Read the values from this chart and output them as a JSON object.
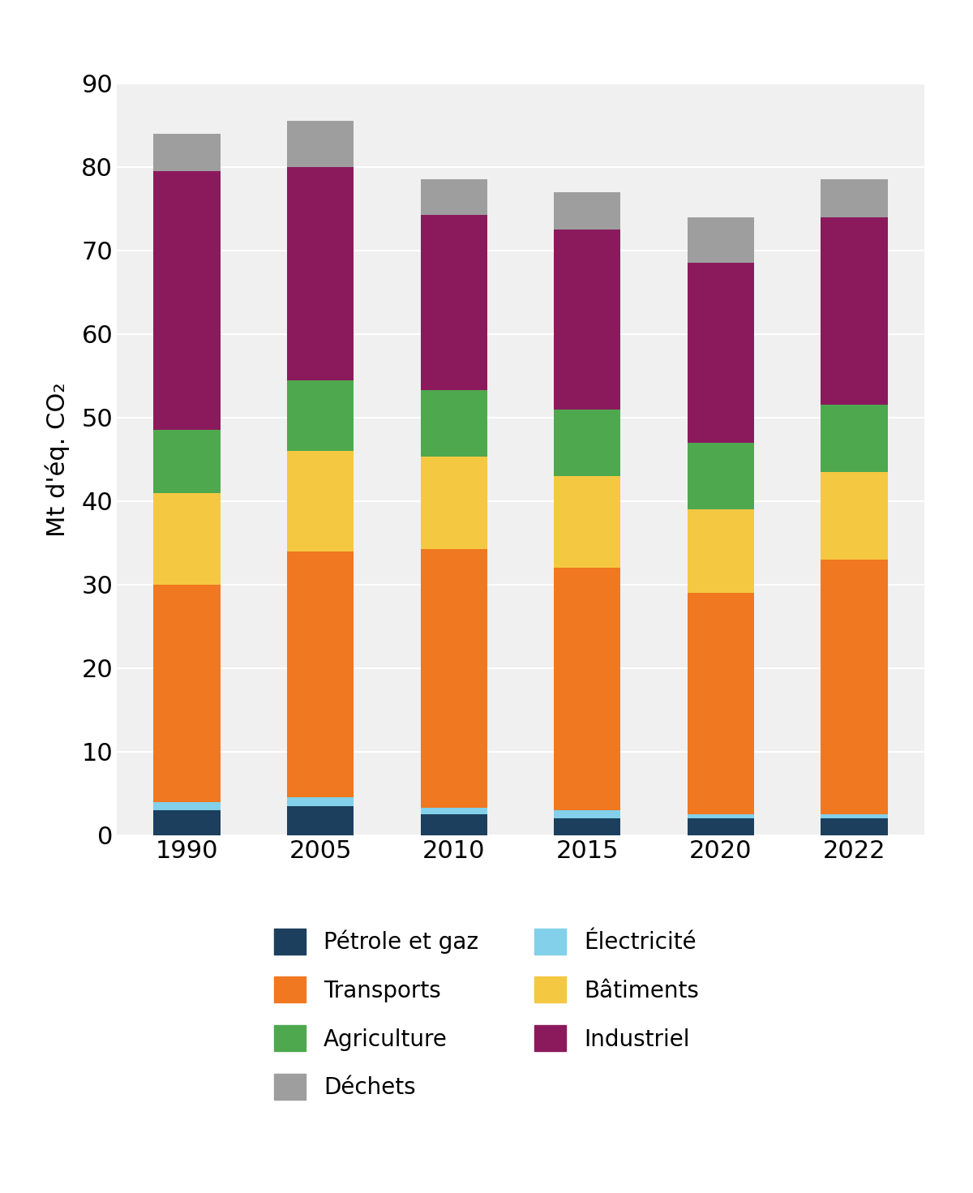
{
  "years": [
    "1990",
    "2005",
    "2010",
    "2015",
    "2020",
    "2022"
  ],
  "categories": [
    "Pétrole et gaz",
    "Électricité",
    "Transports",
    "Bâtiments",
    "Agriculture",
    "Industriel",
    "Déchets"
  ],
  "colors": [
    "#1c3f5e",
    "#82d0ea",
    "#f07820",
    "#f5c842",
    "#4ea84e",
    "#8b1a5c",
    "#9e9e9e"
  ],
  "data": {
    "Pétrole et gaz": [
      3.0,
      3.5,
      2.5,
      2.0,
      2.0,
      2.0
    ],
    "Électricité": [
      1.0,
      1.0,
      0.8,
      1.0,
      0.5,
      0.5
    ],
    "Transports": [
      26.0,
      29.5,
      31.0,
      29.0,
      26.5,
      30.5
    ],
    "Bâtiments": [
      11.0,
      12.0,
      11.0,
      11.0,
      10.0,
      10.5
    ],
    "Agriculture": [
      7.5,
      8.5,
      8.0,
      8.0,
      8.0,
      8.0
    ],
    "Industriel": [
      31.0,
      25.5,
      21.0,
      21.5,
      21.5,
      22.5
    ],
    "Déchets": [
      4.5,
      5.5,
      4.2,
      4.5,
      5.5,
      4.5
    ]
  },
  "ylabel": "Mt d'éq. CO₂",
  "ylim": [
    0,
    90
  ],
  "yticks": [
    0,
    10,
    20,
    30,
    40,
    50,
    60,
    70,
    80,
    90
  ],
  "background_color": "#f0f0f0",
  "bar_width": 0.5,
  "tick_fontsize": 22,
  "ylabel_fontsize": 22,
  "legend_fontsize": 20
}
